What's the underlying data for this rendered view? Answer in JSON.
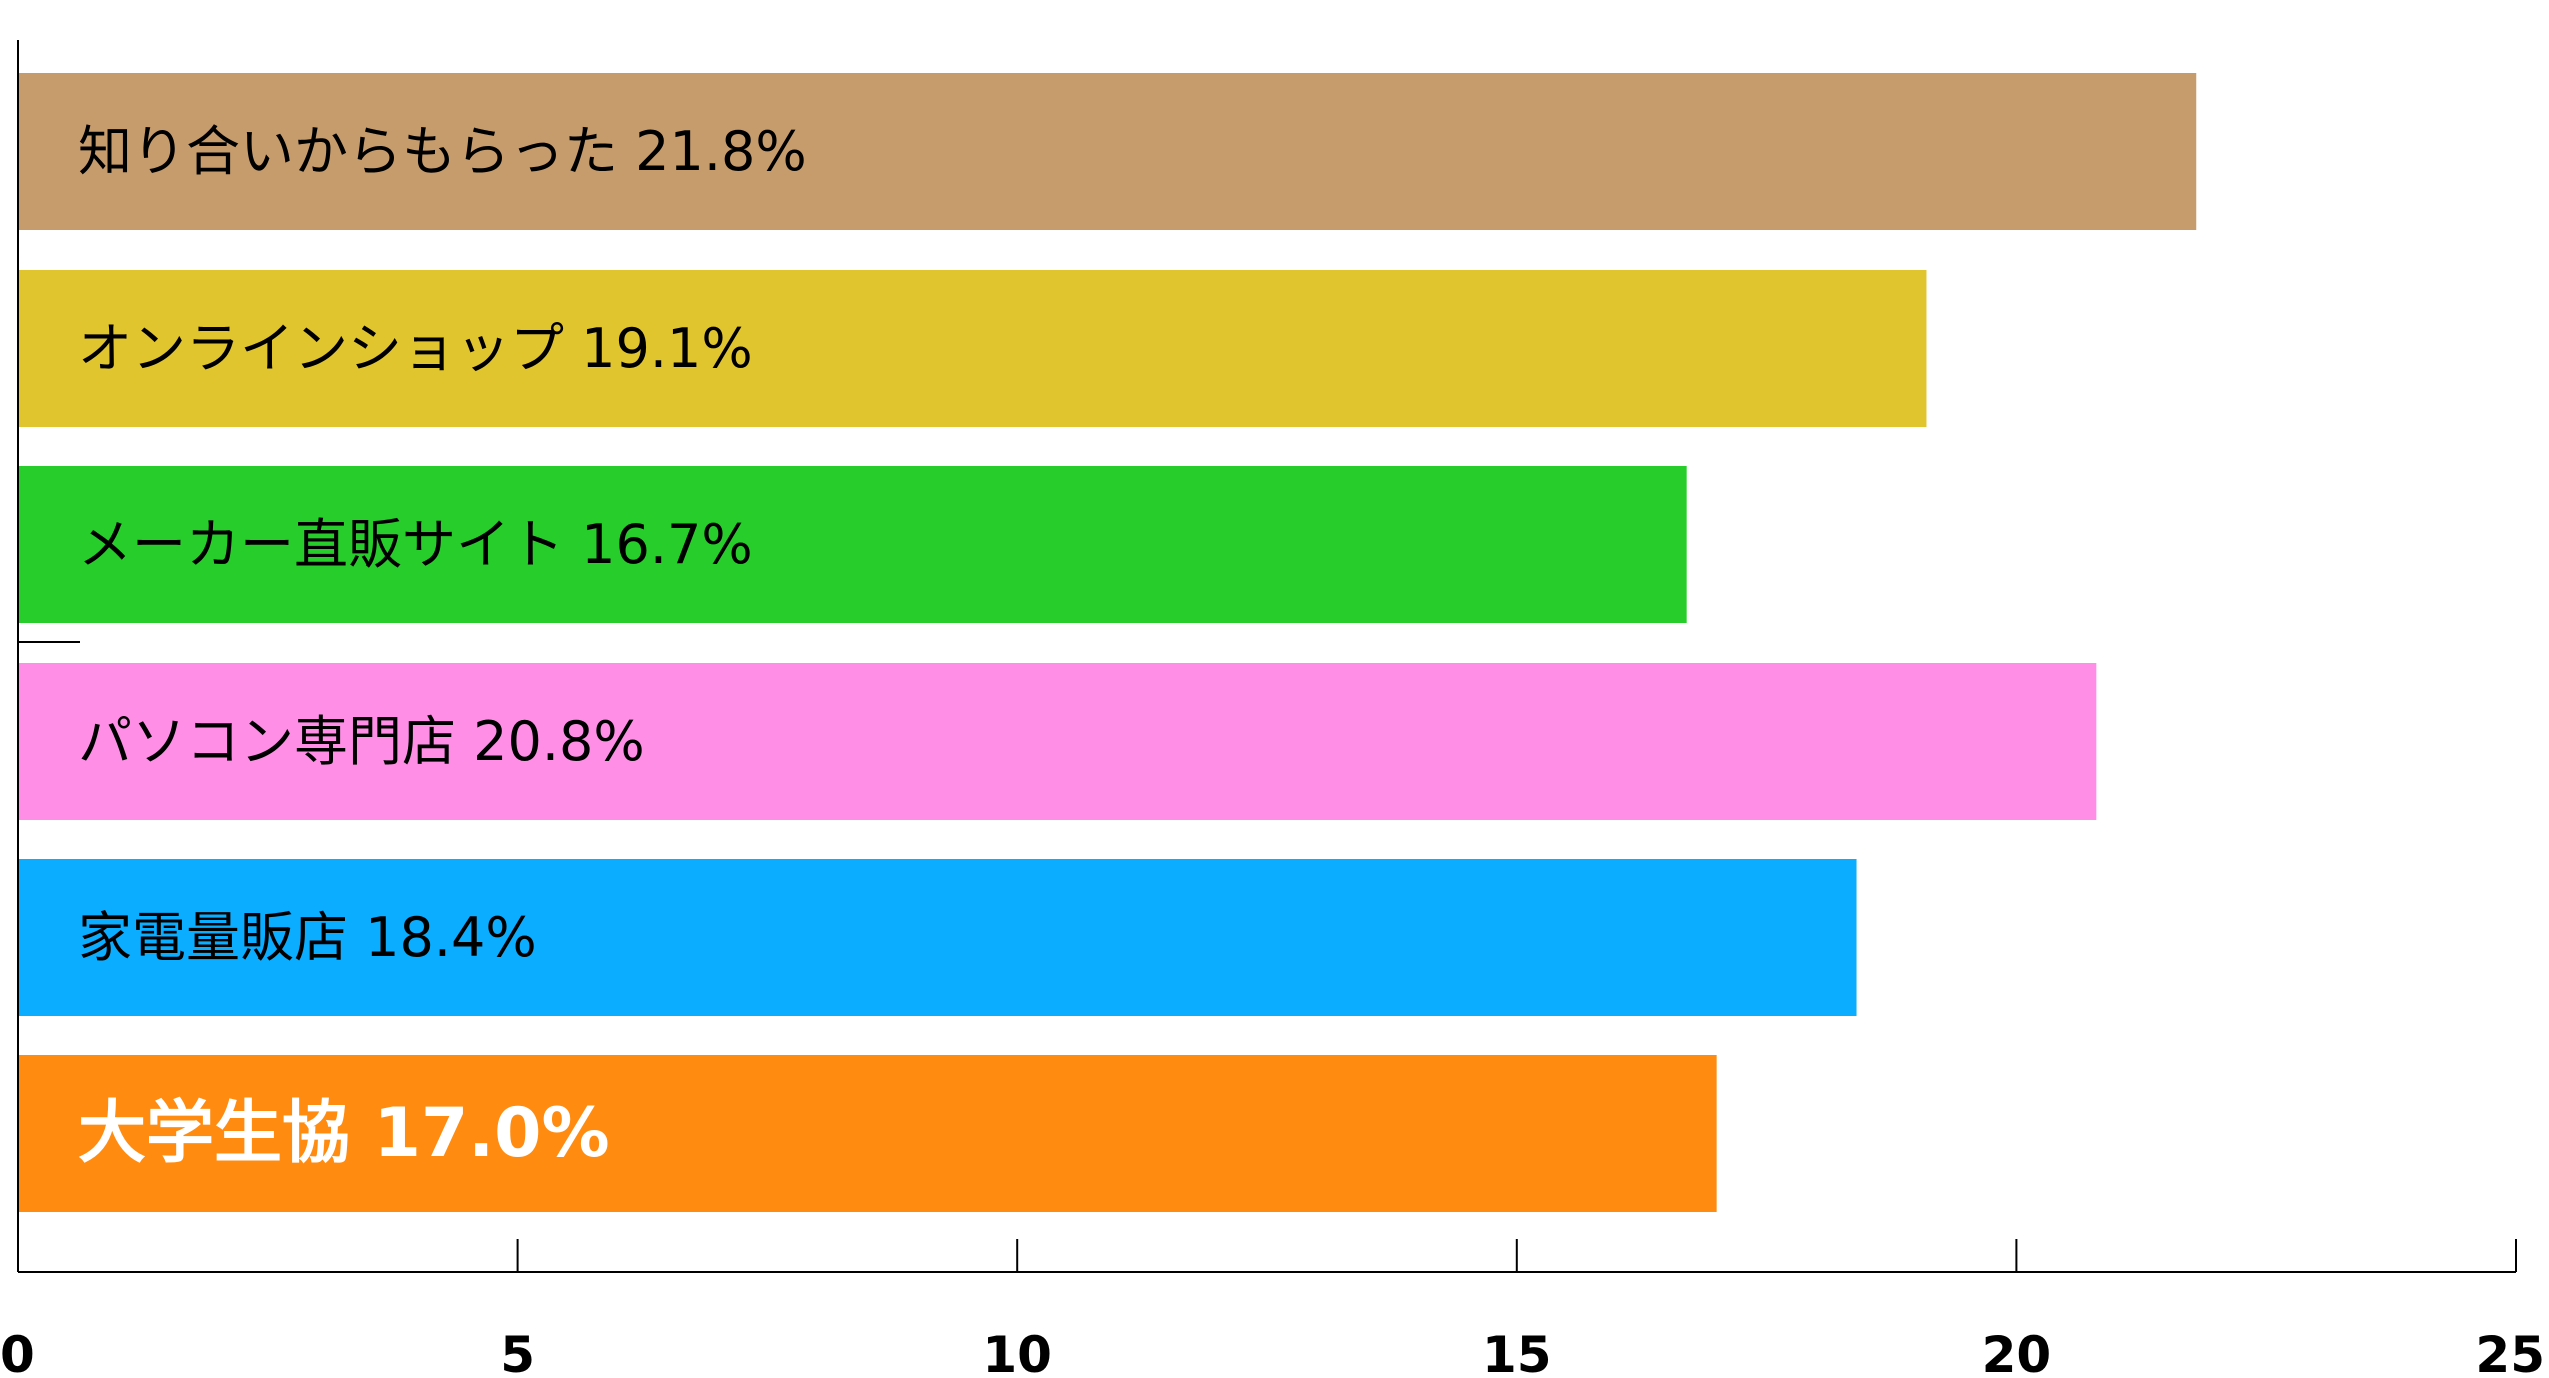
{
  "chart_data": {
    "type": "bar",
    "orientation": "horizontal",
    "title": "",
    "xlabel": "",
    "ylabel": "",
    "xlim": [
      0,
      25
    ],
    "x_ticks": [
      0,
      5,
      10,
      15,
      20,
      25
    ],
    "grid": false,
    "legend": "none",
    "categories": [
      "知り合いからもらった",
      "オンラインショップ",
      "メーカー直販サイト",
      "パソコン専門店",
      "家電量販店",
      "大学生協"
    ],
    "values": [
      21.8,
      19.1,
      16.7,
      20.8,
      18.4,
      17.0
    ],
    "data_labels": [
      "知り合いからもらった 21.8%",
      "オンラインショップ 19.1%",
      "メーカー直販サイト 16.7%",
      "パソコン専門店 20.8%",
      "家電量販店 18.4%",
      "大学生協 17.0%"
    ],
    "colors": [
      "#C69C6D",
      "#E1C52F",
      "#27CD2A",
      "#FF8FE6",
      "#0AADFF",
      "#FF8C11"
    ],
    "highlighted_index": 5
  }
}
